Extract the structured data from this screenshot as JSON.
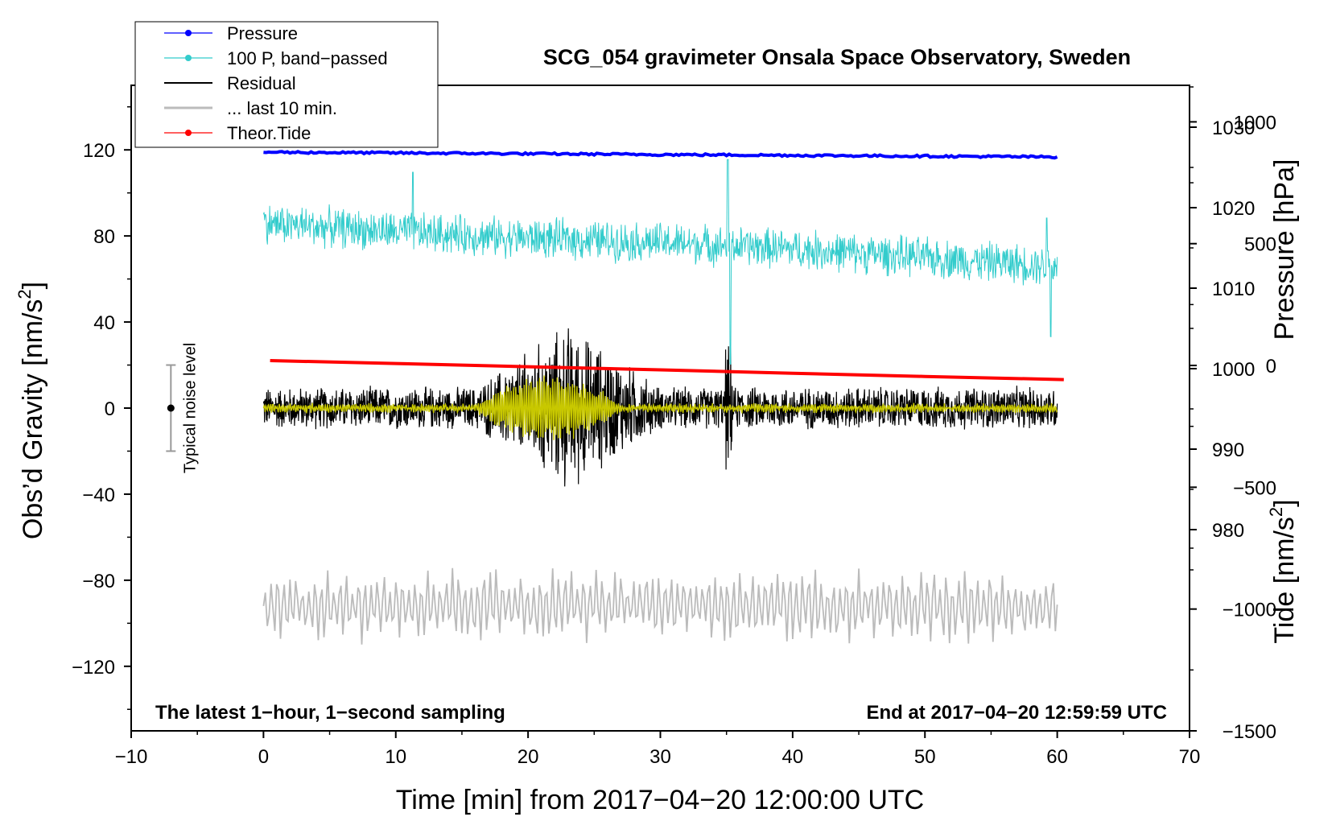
{
  "chart_data": {
    "type": "line",
    "title": "SCG_054 gravimeter Onsala Space Observatory, Sweden",
    "xlabel": "Time [min] from 2017−04−20 12:00:00 UTC",
    "ylabel_left": "Obs’d Gravity [nm/s",
    "ylabel_left_sup": "2",
    "ylabel_left_close": "]",
    "ylabel_right_pressure": "Pressure [hPa]",
    "ylabel_right_tide": "Tide [nm/s",
    "ylabel_right_tide_sup": "2",
    "ylabel_right_tide_close": "]",
    "xlim": [
      -10,
      70
    ],
    "ylim": [
      -150,
      150
    ],
    "x_ticks": [
      -10,
      0,
      10,
      20,
      30,
      40,
      50,
      60,
      70
    ],
    "x_tick_labels": [
      "−10",
      "0",
      "10",
      "20",
      "30",
      "40",
      "50",
      "60",
      "70"
    ],
    "y_ticks": [
      -120,
      -80,
      -40,
      0,
      40,
      80,
      120
    ],
    "y_tick_labels": [
      "−120",
      "−80",
      "−40",
      "0",
      "40",
      "80",
      "120"
    ],
    "pressure_axis": {
      "ticks": [
        980,
        990,
        1000,
        1010,
        1020,
        1030
      ],
      "tick_labels": [
        "980",
        "990",
        "1000",
        "1010",
        "1020",
        "1030"
      ],
      "ylim": [
        955,
        1035.2
      ]
    },
    "tide_axis": {
      "ticks": [
        -1500,
        -1000,
        -500,
        0,
        500,
        1000
      ],
      "tick_labels": [
        "−1500",
        "−1000",
        "−500",
        "0",
        "500",
        "1000"
      ],
      "ylim": [
        -1500,
        1150
      ]
    },
    "legend": {
      "position": "top-left",
      "items": [
        {
          "label": "Pressure",
          "color": "#0000ff",
          "marker": true
        },
        {
          "label": "100 P, band−passed",
          "color": "#33cccc",
          "marker": true
        },
        {
          "label": "Residual",
          "color": "#000000",
          "marker": false
        },
        {
          "label": "... last 10 min.",
          "color": "#bbbbbb",
          "marker": false
        },
        {
          "label": "Theor.Tide",
          "color": "#ff0000",
          "marker": true
        }
      ]
    },
    "series": [
      {
        "name": "Pressure",
        "color": "#0000ff",
        "axis": "pressure",
        "x": [
          0,
          10,
          20,
          30,
          40,
          50,
          60
        ],
        "values": [
          1026.9,
          1026.8,
          1026.7,
          1026.6,
          1026.5,
          1026.4,
          1026.3
        ]
      },
      {
        "name": "100 P, band−passed",
        "color": "#33cccc",
        "axis": "left",
        "baseline": [
          [
            0,
            86
          ],
          [
            10,
            82
          ],
          [
            20,
            79
          ],
          [
            30,
            77
          ],
          [
            40,
            74
          ],
          [
            50,
            70
          ],
          [
            60,
            66
          ]
        ],
        "noise_amplitude": 9,
        "spikes": [
          [
            11.3,
            -38
          ],
          [
            11.3,
            28
          ],
          [
            35.1,
            40
          ],
          [
            35.3,
            -55
          ],
          [
            59.5,
            -33
          ],
          [
            59.2,
            22
          ]
        ]
      },
      {
        "name": "Residual",
        "color": "#000000",
        "axis": "left",
        "baseline": 0,
        "noise_amplitude": 9,
        "event_window": [
          16,
          30
        ],
        "event_amplitude": 30
      },
      {
        "name": "Residual (filtered)",
        "color": "#c8c800",
        "axis": "left",
        "baseline": 0,
        "event_window": [
          16,
          27
        ],
        "event_amplitude": 14
      },
      {
        "name": "... last 10 min.",
        "color": "#bbbbbb",
        "axis": "left",
        "baseline": -92,
        "noise_amplitude": 14
      },
      {
        "name": "Theor.Tide",
        "color": "#ff0000",
        "axis": "tide",
        "x": [
          0.5,
          10,
          20,
          30,
          40,
          50,
          60.5
        ],
        "values": [
          20,
          8,
          -5,
          -18,
          -32,
          -45,
          -58
        ]
      }
    ],
    "noise_bar": {
      "label": "Typical noise level",
      "x": -7,
      "center": 0,
      "half_range": 20
    },
    "annotations": {
      "bottom_left": "The latest 1−hour, 1−second sampling",
      "bottom_right": "End at 2017−04−20 12:59:59 UTC"
    }
  }
}
